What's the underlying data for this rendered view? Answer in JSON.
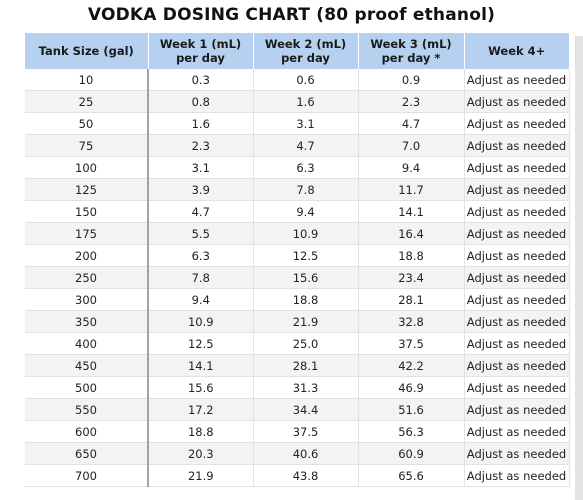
{
  "title": "VODKA DOSING CHART (80 proof ethanol)",
  "header": {
    "tank_size": "Tank Size (gal)",
    "week1_line1": "Week 1 (mL)",
    "week1_line2": "per day",
    "week2_line1": "Week 2 (mL)",
    "week2_line2": "per day",
    "week3_line1": "Week 3 (mL)",
    "week3_line2": "per day *",
    "week4": "Week 4+"
  },
  "rows": [
    {
      "tank": "10",
      "w1": "0.3",
      "w2": "0.6",
      "w3": "0.9",
      "w4": "Adjust as needed"
    },
    {
      "tank": "25",
      "w1": "0.8",
      "w2": "1.6",
      "w3": "2.3",
      "w4": "Adjust as needed"
    },
    {
      "tank": "50",
      "w1": "1.6",
      "w2": "3.1",
      "w3": "4.7",
      "w4": "Adjust as needed"
    },
    {
      "tank": "75",
      "w1": "2.3",
      "w2": "4.7",
      "w3": "7.0",
      "w4": "Adjust as needed"
    },
    {
      "tank": "100",
      "w1": "3.1",
      "w2": "6.3",
      "w3": "9.4",
      "w4": "Adjust as needed"
    },
    {
      "tank": "125",
      "w1": "3.9",
      "w2": "7.8",
      "w3": "11.7",
      "w4": "Adjust as needed"
    },
    {
      "tank": "150",
      "w1": "4.7",
      "w2": "9.4",
      "w3": "14.1",
      "w4": "Adjust as needed"
    },
    {
      "tank": "175",
      "w1": "5.5",
      "w2": "10.9",
      "w3": "16.4",
      "w4": "Adjust as needed"
    },
    {
      "tank": "200",
      "w1": "6.3",
      "w2": "12.5",
      "w3": "18.8",
      "w4": "Adjust as needed"
    },
    {
      "tank": "250",
      "w1": "7.8",
      "w2": "15.6",
      "w3": "23.4",
      "w4": "Adjust as needed"
    },
    {
      "tank": "300",
      "w1": "9.4",
      "w2": "18.8",
      "w3": "28.1",
      "w4": "Adjust as needed"
    },
    {
      "tank": "350",
      "w1": "10.9",
      "w2": "21.9",
      "w3": "32.8",
      "w4": "Adjust as needed"
    },
    {
      "tank": "400",
      "w1": "12.5",
      "w2": "25.0",
      "w3": "37.5",
      "w4": "Adjust as needed"
    },
    {
      "tank": "450",
      "w1": "14.1",
      "w2": "28.1",
      "w3": "42.2",
      "w4": "Adjust as needed"
    },
    {
      "tank": "500",
      "w1": "15.6",
      "w2": "31.3",
      "w3": "46.9",
      "w4": "Adjust as needed"
    },
    {
      "tank": "550",
      "w1": "17.2",
      "w2": "34.4",
      "w3": "51.6",
      "w4": "Adjust as needed"
    },
    {
      "tank": "600",
      "w1": "18.8",
      "w2": "37.5",
      "w3": "56.3",
      "w4": "Adjust as needed"
    },
    {
      "tank": "650",
      "w1": "20.3",
      "w2": "40.6",
      "w3": "60.9",
      "w4": "Adjust as needed"
    },
    {
      "tank": "700",
      "w1": "21.9",
      "w2": "43.8",
      "w3": "65.6",
      "w4": "Adjust as needed"
    }
  ],
  "colors": {
    "header_bg": "#b5d1ef",
    "stripe_bg": "#f3f3f3",
    "grid_line": "#e2e2e2"
  }
}
